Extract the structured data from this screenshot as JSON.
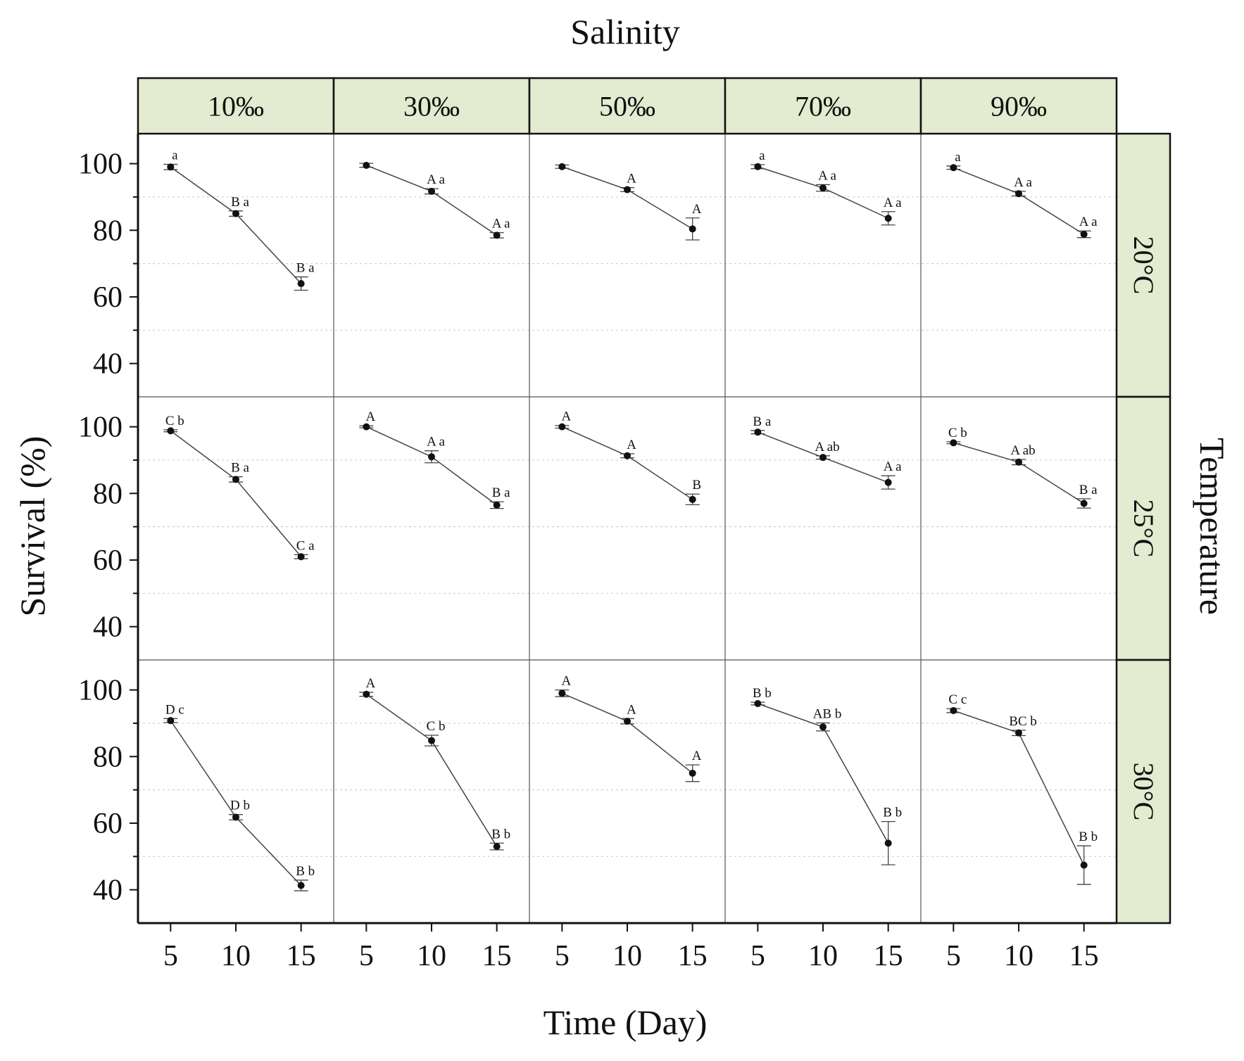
{
  "colors": {
    "strip_fill": "#e3ebd0",
    "line": "#444444",
    "point": "#111111",
    "grid": "#cfcfcf",
    "frame": "#111111"
  },
  "chart_data": {
    "type": "line",
    "layout": "facet-grid 3 rows x 5 columns",
    "column_facet_title": "Salinity",
    "row_facet_title": "Temperature",
    "columns": [
      "10‰",
      "30‰",
      "50‰",
      "70‰",
      "90‰"
    ],
    "rows": [
      "20°C",
      "25°C",
      "30°C"
    ],
    "xlabel": "Time (Day)",
    "ylabel": "Survival (%)",
    "x": [
      5,
      10,
      15
    ],
    "x_tick_labels": [
      "5",
      "10",
      "15"
    ],
    "xlim": [
      2.5,
      17.5
    ],
    "ylim": [
      30,
      109
    ],
    "y_ticks": [
      40,
      60,
      80,
      100
    ],
    "y_tick_labels": [
      "40",
      "60",
      "80",
      "100"
    ],
    "y_grid": [
      50,
      70,
      90
    ],
    "panels": [
      [
        {
          "values": [
            99,
            85,
            64
          ],
          "errors": [
            0.8,
            0.8,
            2.0
          ],
          "labels": [
            "a",
            "B a",
            "B a"
          ]
        },
        {
          "values": [
            99.5,
            91.7,
            78.5
          ],
          "errors": [
            0.6,
            0.8,
            0.8
          ],
          "labels": [
            "",
            "A a",
            "A a"
          ]
        },
        {
          "values": [
            99.1,
            92.2,
            80.4
          ],
          "errors": [
            0.5,
            0.6,
            3.3
          ],
          "labels": [
            "",
            "A",
            "A"
          ]
        },
        {
          "values": [
            99.1,
            92.7,
            83.6
          ],
          "errors": [
            0.6,
            1.0,
            2.0
          ],
          "labels": [
            "a",
            "A a",
            "A a"
          ]
        },
        {
          "values": [
            98.8,
            91,
            78.8
          ],
          "errors": [
            0.5,
            0.7,
            1.0
          ],
          "labels": [
            "a",
            "A a",
            "A a"
          ]
        }
      ],
      [
        {
          "values": [
            98.8,
            84.2,
            61
          ],
          "errors": [
            0.3,
            0.8,
            0.6
          ],
          "labels": [
            "C b",
            "B a",
            "C a"
          ]
        },
        {
          "values": [
            100,
            91,
            76.5
          ],
          "errors": [
            0.3,
            1.8,
            1.0
          ],
          "labels": [
            "A",
            "A a",
            "B a"
          ]
        },
        {
          "values": [
            100,
            91.3,
            78.2
          ],
          "errors": [
            0.4,
            0.6,
            1.6
          ],
          "labels": [
            "A",
            "A",
            "B"
          ]
        },
        {
          "values": [
            98.4,
            90.8,
            83.3
          ],
          "errors": [
            0.5,
            0.5,
            2.0
          ],
          "labels": [
            "B a",
            "A ab",
            "A a"
          ]
        },
        {
          "values": [
            95.2,
            89.4,
            77
          ],
          "errors": [
            0.3,
            0.8,
            1.4
          ],
          "labels": [
            "C b",
            "A ab",
            "B a"
          ]
        }
      ],
      [
        {
          "values": [
            90.8,
            61.8,
            41.3
          ],
          "errors": [
            0.6,
            0.8,
            1.6
          ],
          "labels": [
            "D c",
            "D b",
            "B b"
          ]
        },
        {
          "values": [
            98.7,
            84.8,
            53
          ],
          "errors": [
            0.6,
            1.6,
            1.0
          ],
          "labels": [
            "A",
            "C b",
            "B b"
          ]
        },
        {
          "values": [
            99,
            90.6,
            75
          ],
          "errors": [
            1.0,
            0.8,
            2.5
          ],
          "labels": [
            "A",
            "A",
            "A"
          ]
        },
        {
          "values": [
            95.9,
            88.9,
            54
          ],
          "errors": [
            0.4,
            1.2,
            6.5
          ],
          "labels": [
            "B b",
            "AB b",
            "B b"
          ]
        },
        {
          "values": [
            93.8,
            87.1,
            47.4
          ],
          "errors": [
            0.6,
            0.8,
            5.8
          ],
          "labels": [
            "C c",
            "BC b",
            "B b"
          ]
        }
      ]
    ]
  }
}
